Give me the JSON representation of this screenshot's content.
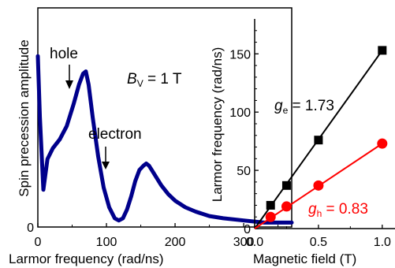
{
  "chart_data": [
    {
      "type": "line",
      "ylabel": "Spin precession amplitude",
      "xlabel": "Larmor frequency (rad/ns)",
      "xlim": [
        0,
        370
      ],
      "xticks": [
        0,
        100,
        200,
        300
      ],
      "ylim": [
        0,
        1
      ],
      "y_tick_labels": [
        "0"
      ],
      "grid": false,
      "series": [
        {
          "color": "#00008b",
          "x": [
            0,
            3,
            8,
            14,
            22,
            32,
            42,
            52,
            60,
            66,
            70,
            74,
            80,
            88,
            96,
            104,
            112,
            118,
            124,
            130,
            136,
            142,
            148,
            154,
            158,
            162,
            166,
            172,
            180,
            190,
            200,
            215,
            230,
            250,
            270,
            300,
            330,
            370
          ],
          "y": [
            0.78,
            0.5,
            0.17,
            0.31,
            0.36,
            0.4,
            0.46,
            0.56,
            0.65,
            0.7,
            0.71,
            0.65,
            0.5,
            0.32,
            0.18,
            0.09,
            0.04,
            0.03,
            0.04,
            0.08,
            0.14,
            0.21,
            0.26,
            0.28,
            0.29,
            0.28,
            0.26,
            0.23,
            0.19,
            0.15,
            0.12,
            0.09,
            0.07,
            0.05,
            0.04,
            0.03,
            0.02,
            0.02
          ]
        }
      ],
      "annotations": {
        "hole": "hole",
        "electron": "electron",
        "bfield_main": "B",
        "bfield_sub": "V",
        "bfield_value": " = 1 T"
      }
    },
    {
      "type": "scatter",
      "ylabel": "Larmor frequency (rad/ns)",
      "xlabel": "Magnetic field (T)",
      "xlim": [
        0,
        1.1
      ],
      "xticks": [
        "0.0",
        "0.5",
        "1.0"
      ],
      "ylim": [
        0,
        180
      ],
      "yticks": [
        0,
        50,
        100,
        150
      ],
      "grid": false,
      "series": [
        {
          "name": "electron",
          "color": "#000000",
          "marker": "square",
          "x": [
            0.125,
            0.25,
            0.5,
            1.0
          ],
          "y": [
            20,
            37,
            76,
            153
          ],
          "fit": [
            [
              0,
              0
            ],
            [
              1.0,
              153
            ]
          ]
        },
        {
          "name": "hole",
          "color": "#ff0000",
          "marker": "circle",
          "x": [
            0.125,
            0.25,
            0.5,
            1.0
          ],
          "y": [
            10,
            19,
            37,
            73
          ],
          "fit": [
            [
              0,
              0
            ],
            [
              1.0,
              73
            ]
          ]
        }
      ],
      "annotations": {
        "ge_main": "g",
        "ge_sub": "e",
        "ge_value": " = 1.73",
        "gh_main": "g",
        "gh_sub": "h",
        "gh_value": " = 0.83"
      }
    }
  ]
}
